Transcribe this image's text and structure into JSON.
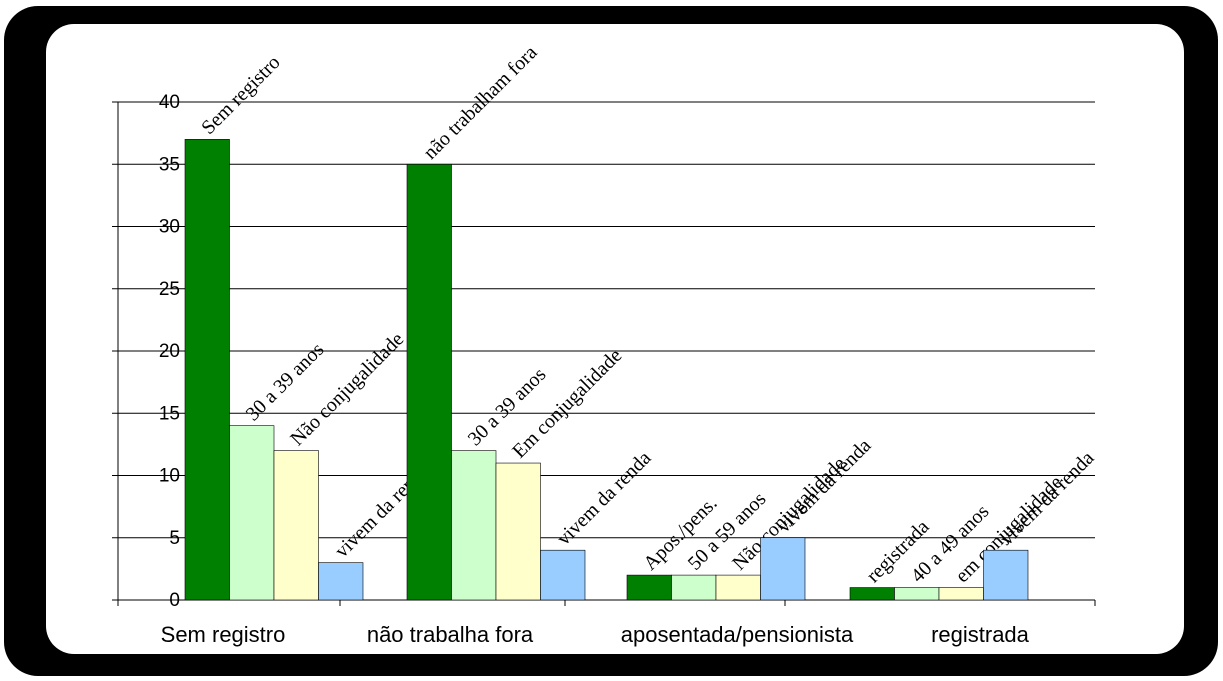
{
  "chart_data": {
    "type": "bar",
    "categories": [
      "Sem registro",
      "não trabalha fora",
      "aposentada/pensionista",
      "registrada"
    ],
    "ylim": [
      0,
      40
    ],
    "yticks": [
      0,
      5,
      10,
      15,
      20,
      25,
      30,
      35,
      40
    ],
    "grid": true,
    "legend": "none",
    "series_colors": [
      "#008000",
      "#ccffcc",
      "#ffffcc",
      "#99ccff"
    ],
    "bars": [
      [
        {
          "value": 37,
          "label": "Sem registro"
        },
        {
          "value": 14,
          "label": "30 a 39 anos"
        },
        {
          "value": 12,
          "label": "Não conjugalidade"
        },
        {
          "value": 3,
          "label": "vivem da renda"
        }
      ],
      [
        {
          "value": 35,
          "label": "não trabalham fora"
        },
        {
          "value": 12,
          "label": "30 a 39 anos"
        },
        {
          "value": 11,
          "label": "Em conjugalidade"
        },
        {
          "value": 4,
          "label": "vivem da renda"
        }
      ],
      [
        {
          "value": 2,
          "label": "Apos./pens."
        },
        {
          "value": 2,
          "label": "50 a 59 anos"
        },
        {
          "value": 2,
          "label": "Não conjugalidade"
        },
        {
          "value": 5,
          "label": "vivem da renda"
        }
      ],
      [
        {
          "value": 1,
          "label": "registrada"
        },
        {
          "value": 1,
          "label": "40 a 49 anos"
        },
        {
          "value": 1,
          "label": "em conjugalidade"
        },
        {
          "value": 4,
          "label": "vivem da renda"
        }
      ]
    ]
  }
}
